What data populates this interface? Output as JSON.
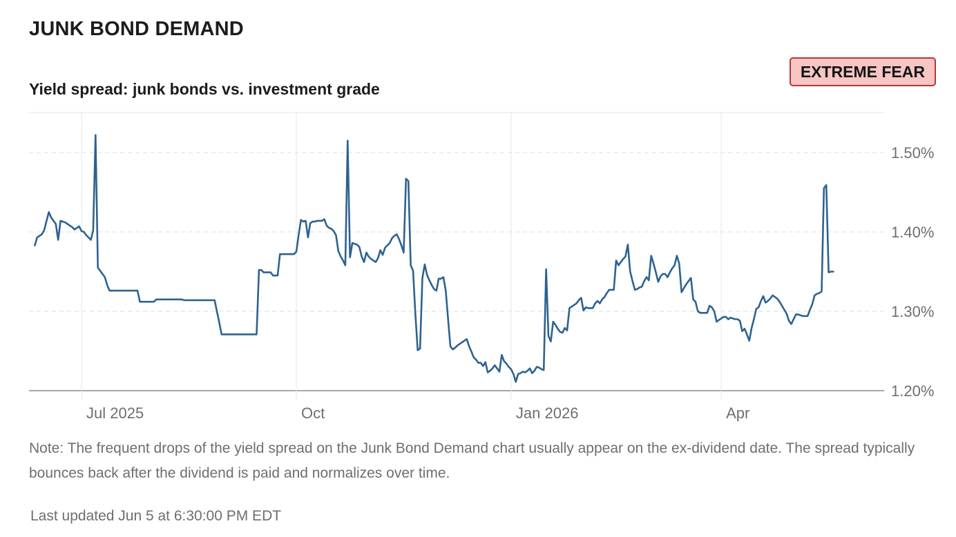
{
  "header": {
    "title": "JUNK BOND DEMAND",
    "sentiment_badge": "EXTREME FEAR",
    "badge_colors": {
      "fill": "#f7c6c2",
      "border": "#b8353a"
    }
  },
  "chart_data": {
    "type": "line",
    "title": "Yield spread: junk bonds vs. investment grade",
    "xlabel": "",
    "ylabel": "",
    "x_range": [
      -20,
      322
    ],
    "x_ticks": [
      {
        "label": "Jul 2025",
        "x": 0
      },
      {
        "label": "Oct",
        "x": 92
      },
      {
        "label": "Jan 2026",
        "x": 184
      },
      {
        "label": "Apr",
        "x": 274
      }
    ],
    "ylim": [
      1.2,
      1.55
    ],
    "y_ticks": [
      {
        "label": "1.20%",
        "value": 1.2
      },
      {
        "label": "1.30%",
        "value": 1.3
      },
      {
        "label": "1.40%",
        "value": 1.4
      },
      {
        "label": "1.50%",
        "value": 1.5
      }
    ],
    "grid": "dashed horizontal and vertical",
    "line_color": "#2d6290",
    "series": [
      {
        "x": [
          -20,
          -19,
          -17,
          -16,
          -14,
          -13,
          -11,
          -10,
          -9,
          -7,
          -6,
          -5,
          -4,
          -3,
          -1,
          0,
          1,
          2,
          3,
          4,
          5,
          6,
          7,
          8,
          9,
          10,
          11,
          12,
          13,
          14,
          15,
          16,
          17,
          18,
          19,
          20,
          21,
          22,
          23,
          24,
          25,
          26,
          27,
          28,
          29,
          30,
          31,
          32,
          33,
          34,
          35,
          36,
          37,
          38,
          39,
          40,
          41,
          42,
          43,
          44,
          45,
          46,
          47,
          48,
          49,
          50,
          51,
          52,
          53,
          54,
          55,
          56,
          57,
          58,
          59,
          60,
          61,
          62,
          63,
          64,
          65,
          66,
          67,
          68,
          69,
          70,
          71,
          72,
          73,
          74,
          75,
          76,
          77,
          78,
          79,
          80,
          81,
          82,
          83,
          84,
          85,
          86,
          87,
          88,
          89,
          90,
          91,
          92,
          93,
          94,
          95,
          96,
          97,
          98,
          99,
          100,
          101,
          102,
          103,
          104,
          105,
          106,
          107,
          108,
          109,
          110,
          111,
          112,
          113,
          114,
          115,
          116,
          117,
          118,
          119,
          120,
          121,
          122,
          123,
          124,
          125,
          126,
          127,
          128,
          129,
          130,
          131,
          132,
          133,
          134,
          135,
          136,
          137,
          138,
          139,
          140,
          141,
          142,
          143,
          144,
          145,
          146,
          147,
          148,
          149,
          150,
          151,
          152,
          153,
          154,
          155,
          156,
          157,
          158,
          159,
          160,
          161,
          162,
          163,
          164,
          165,
          166,
          167,
          168,
          169,
          170,
          171,
          172,
          173,
          174,
          175,
          176,
          177,
          178,
          179,
          180,
          181,
          182,
          183,
          184,
          185,
          186,
          187,
          188,
          189,
          190,
          191,
          192,
          193,
          194,
          195,
          196,
          197,
          198,
          199,
          200,
          201,
          202,
          203,
          204,
          205,
          206,
          207,
          208,
          209,
          210,
          211,
          212,
          213,
          214,
          215,
          216,
          217,
          218,
          219,
          220,
          221,
          222,
          223,
          224,
          225,
          226,
          227,
          228,
          229,
          230,
          231,
          232,
          233,
          234,
          235,
          236,
          237,
          238,
          239,
          240,
          241,
          242,
          243,
          244,
          245,
          246,
          247,
          248,
          249,
          250,
          251,
          252,
          253,
          254,
          255,
          256,
          257,
          258,
          259,
          260,
          261,
          262,
          263,
          264,
          265,
          266,
          267,
          268,
          269,
          270,
          271,
          272,
          273,
          274,
          275,
          276,
          277,
          278,
          279,
          280,
          281,
          282,
          283,
          284,
          285,
          286,
          287,
          288,
          289,
          290,
          291,
          292,
          293,
          294,
          295,
          296,
          297,
          298,
          299,
          300,
          301,
          302,
          303,
          304,
          305,
          306,
          307,
          308,
          309,
          310,
          311,
          312,
          313,
          314,
          315,
          316,
          317,
          318,
          319,
          320,
          321,
          322
        ],
        "y": [
          1.383,
          1.393,
          1.397,
          1.402,
          1.425,
          1.418,
          1.41,
          1.39,
          1.414,
          1.412,
          1.41,
          1.408,
          1.406,
          1.403,
          1.407,
          1.401,
          1.4,
          1.396,
          1.393,
          1.39,
          1.402,
          1.522,
          1.355,
          1.351,
          1.347,
          1.343,
          1.333,
          1.326,
          1.326,
          1.326,
          1.326,
          1.326,
          1.326,
          1.326,
          1.326,
          1.326,
          1.326,
          1.326,
          1.326,
          1.326,
          1.312,
          1.312,
          1.312,
          1.312,
          1.312,
          1.312,
          1.312,
          1.315,
          1.315,
          1.315,
          1.315,
          1.315,
          1.315,
          1.315,
          1.315,
          1.315,
          1.315,
          1.315,
          1.315,
          1.314,
          1.314,
          1.314,
          1.314,
          1.314,
          1.314,
          1.314,
          1.314,
          1.314,
          1.314,
          1.314,
          1.314,
          1.314,
          1.314,
          1.3,
          1.286,
          1.271,
          1.271,
          1.271,
          1.271,
          1.271,
          1.271,
          1.271,
          1.271,
          1.271,
          1.271,
          1.271,
          1.271,
          1.271,
          1.271,
          1.271,
          1.271,
          1.352,
          1.352,
          1.349,
          1.349,
          1.349,
          1.349,
          1.345,
          1.345,
          1.345,
          1.372,
          1.372,
          1.372,
          1.372,
          1.372,
          1.372,
          1.372,
          1.375,
          1.396,
          1.415,
          1.413,
          1.414,
          1.393,
          1.411,
          1.413,
          1.413,
          1.414,
          1.414,
          1.414,
          1.416,
          1.408,
          1.405,
          1.404,
          1.401,
          1.396,
          1.376,
          1.369,
          1.364,
          1.358,
          1.515,
          1.368,
          1.386,
          1.385,
          1.384,
          1.381,
          1.369,
          1.362,
          1.374,
          1.369,
          1.366,
          1.364,
          1.362,
          1.367,
          1.377,
          1.371,
          1.38,
          1.383,
          1.386,
          1.392,
          1.395,
          1.397,
          1.391,
          1.383,
          1.374,
          1.467,
          1.464,
          1.358,
          1.351,
          1.297,
          1.251,
          1.253,
          1.342,
          1.359,
          1.346,
          1.339,
          1.333,
          1.328,
          1.326,
          1.341,
          1.341,
          1.343,
          1.326,
          1.29,
          1.256,
          1.252,
          1.254,
          1.257,
          1.259,
          1.261,
          1.263,
          1.265,
          1.256,
          1.249,
          1.242,
          1.239,
          1.235,
          1.235,
          1.231,
          1.236,
          1.223,
          1.225,
          1.228,
          1.232,
          1.228,
          1.224,
          1.245,
          1.237,
          1.234,
          1.23,
          1.227,
          1.221,
          1.211,
          1.221,
          1.222,
          1.224,
          1.223,
          1.225,
          1.228,
          1.222,
          1.225,
          1.23,
          1.229,
          1.227,
          1.226,
          1.353,
          1.269,
          1.262,
          1.287,
          1.283,
          1.278,
          1.274,
          1.273,
          1.279,
          1.276,
          1.304,
          1.306,
          1.308,
          1.31,
          1.314,
          1.317,
          1.301,
          1.305,
          1.304,
          1.304,
          1.304,
          1.31,
          1.313,
          1.31,
          1.315,
          1.318,
          1.323,
          1.327,
          1.327,
          1.327,
          1.364,
          1.358,
          1.362,
          1.366,
          1.369,
          1.384,
          1.35,
          1.338,
          1.327,
          1.328,
          1.33,
          1.331,
          1.338,
          1.343,
          1.339,
          1.37,
          1.36,
          1.349,
          1.337,
          1.344,
          1.347,
          1.347,
          1.343,
          1.349,
          1.354,
          1.358,
          1.37,
          1.36,
          1.324,
          1.329,
          1.334,
          1.338,
          1.342,
          1.315,
          1.312,
          1.3,
          1.298,
          1.298,
          1.298,
          1.298,
          1.307,
          1.305,
          1.3,
          1.287,
          1.289,
          1.291,
          1.293,
          1.293,
          1.29,
          1.292,
          1.291,
          1.29,
          1.29,
          1.288,
          1.275,
          1.278,
          1.271,
          1.263,
          1.279,
          1.29,
          1.303,
          1.305,
          1.313,
          1.319,
          1.311,
          1.313,
          1.316,
          1.32,
          1.318,
          1.316,
          1.312,
          1.307,
          1.302,
          1.297,
          1.288,
          1.284,
          1.29,
          1.296,
          1.296,
          1.295,
          1.294,
          1.294,
          1.294,
          1.302,
          1.309,
          1.32,
          1.322,
          1.323,
          1.325,
          1.455,
          1.459,
          1.349,
          1.35,
          1.35
        ]
      }
    ]
  },
  "footer": {
    "note": "Note: The frequent drops of the yield spread on the Junk Bond Demand chart usually appear on the ex-dividend date. The spread typically bounces back after the dividend is paid and normalizes over time.",
    "last_updated": "Last updated Jun 5 at 6:30:00 PM EDT"
  }
}
